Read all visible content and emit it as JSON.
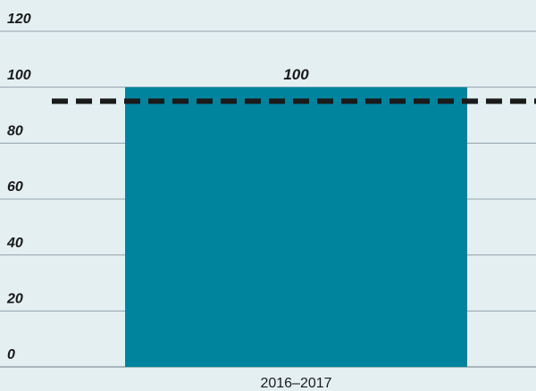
{
  "chart_data": {
    "type": "bar",
    "categories": [
      "2016–2017"
    ],
    "values": [
      100
    ],
    "color": "#00849e",
    "ylim": [
      0,
      120
    ],
    "yticks": [
      0,
      20,
      40,
      60,
      80,
      100,
      120
    ],
    "grid": true,
    "reference_line": {
      "value": 95,
      "color": "#1a1a1a",
      "style": "dashed"
    }
  }
}
